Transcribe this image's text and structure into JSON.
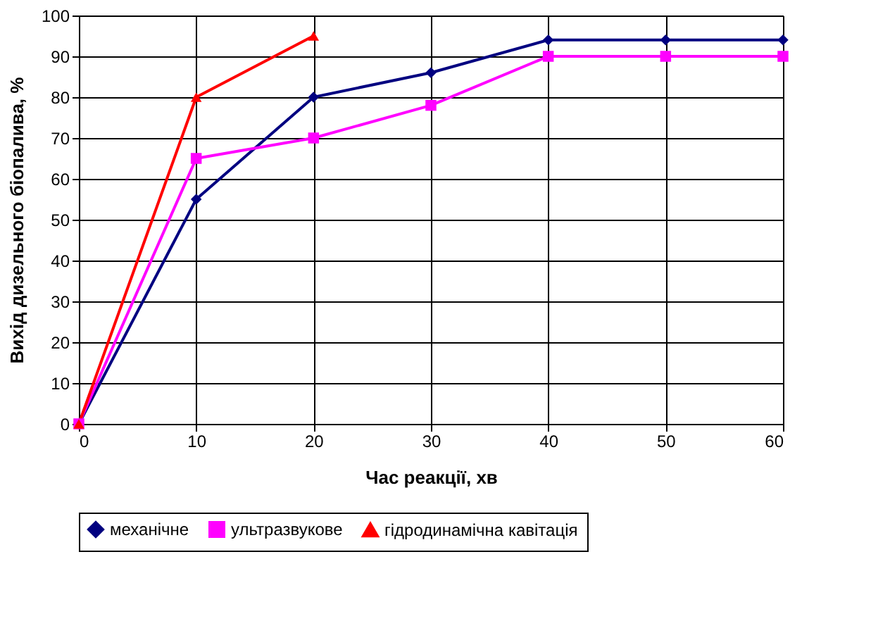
{
  "chart_data": {
    "type": "line",
    "xlabel": "Час реакції, хв",
    "ylabel": "Вихід дизельного біопалива, %",
    "x": [
      0,
      10,
      20,
      30,
      40,
      50,
      60
    ],
    "series": [
      {
        "name": "механічне",
        "color": "#000080",
        "marker": "diamond",
        "values": [
          0,
          55,
          80,
          86,
          94,
          94,
          94
        ]
      },
      {
        "name": "ультразвукове",
        "color": "#ff00ff",
        "marker": "square",
        "values": [
          0,
          65,
          70,
          78,
          90,
          90,
          90
        ]
      },
      {
        "name": "гідродинамічна кавітація",
        "color": "#ff0000",
        "marker": "triangle",
        "x": [
          0,
          10,
          20
        ],
        "values": [
          0,
          80,
          95
        ]
      }
    ],
    "xlim": [
      0,
      60
    ],
    "xticks": [
      0,
      10,
      20,
      30,
      40,
      50,
      60
    ],
    "ylim": [
      0,
      100
    ],
    "yticks": [
      0,
      10,
      20,
      30,
      40,
      50,
      60,
      70,
      80,
      90,
      100
    ],
    "grid": true,
    "legend": "bottom",
    "line_style": "solid"
  }
}
